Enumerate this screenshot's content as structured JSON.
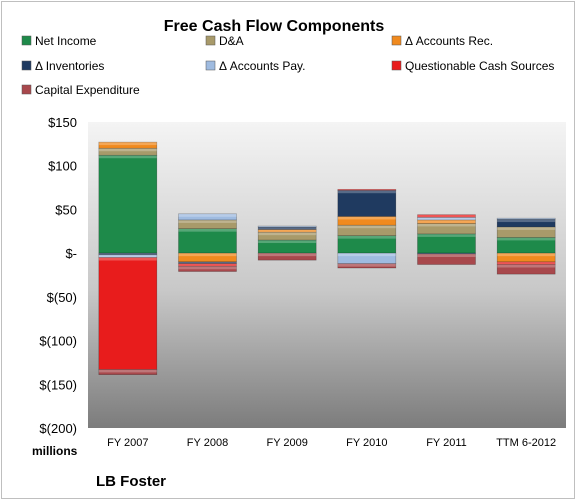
{
  "chart_data": {
    "type": "bar",
    "stacked": true,
    "title": "Free Cash Flow Components",
    "categories": [
      "FY 2007",
      "FY 2008",
      "FY 2009",
      "FY 2010",
      "FY 2011",
      "TTM 6-2012"
    ],
    "y_ticks": [
      "$150",
      "$100",
      "$50",
      "$-",
      "$(50)",
      "$(100)",
      "$(150)",
      "$(200)"
    ],
    "ylim": [
      -200,
      150
    ],
    "units_label": "millions",
    "company": "LB Foster",
    "legend_position": "top",
    "grid": false,
    "series": [
      {
        "name": "Net Income",
        "color": "#1e8a4a",
        "values": [
          112,
          28,
          15,
          20,
          22,
          18
        ]
      },
      {
        "name": "D&A",
        "color": "#a89a6a",
        "values": [
          8,
          10,
          9,
          12,
          12,
          12
        ]
      },
      {
        "name": "Δ Accounts Rec.",
        "color": "#f08a1e",
        "values": [
          7,
          -10,
          3,
          10,
          4,
          -10
        ]
      },
      {
        "name": "Δ Inventories",
        "color": "#1f3a60",
        "values": [
          -2,
          -2,
          3,
          30,
          -1,
          9
        ]
      },
      {
        "name": "Δ Accounts Pay.",
        "color": "#9fbbe0",
        "values": [
          -3,
          7,
          1,
          -12,
          3,
          1
        ]
      },
      {
        "name": "Questionable Cash Sources",
        "color": "#e81c1c",
        "values": [
          -128,
          -3,
          0,
          1,
          3,
          -3
        ]
      },
      {
        "name": "Capital Expenditure",
        "color": "#a8484c",
        "values": [
          -6,
          -6,
          -8,
          -5,
          -12,
          -11
        ]
      }
    ]
  }
}
